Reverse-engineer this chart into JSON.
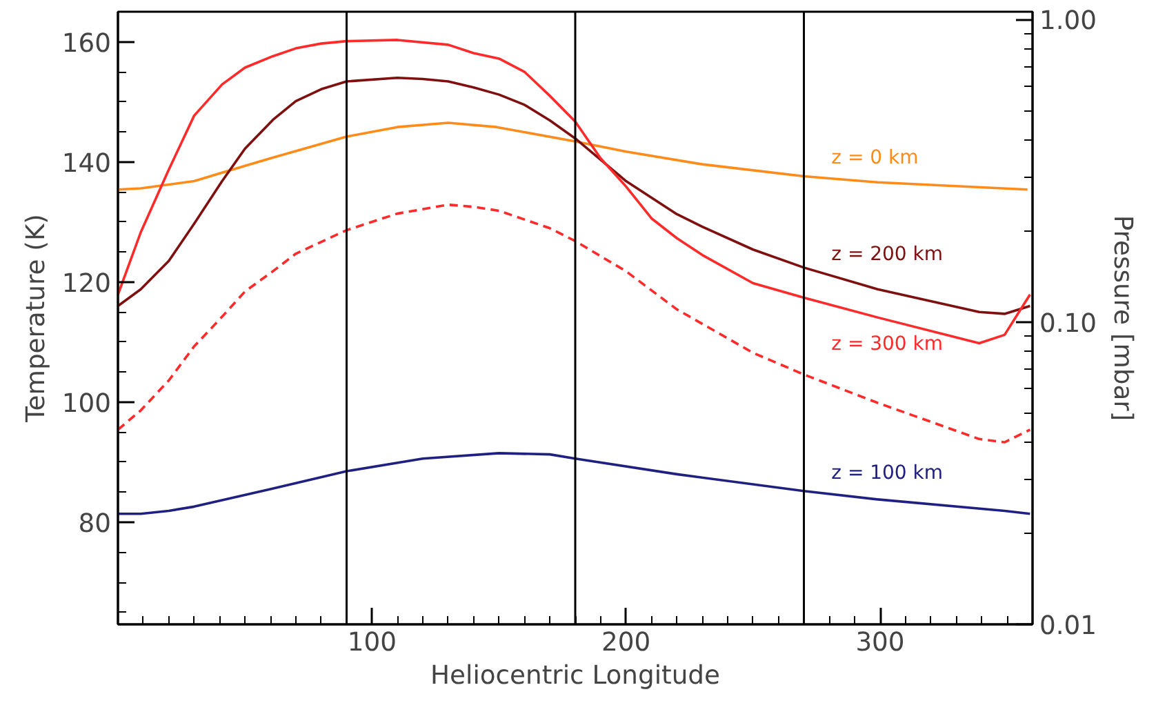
{
  "chart_data": {
    "type": "line",
    "xlabel": "Heliocentric Longitude",
    "ylabel": "Temperature (K)",
    "y2label": "Pressure [mbar]",
    "xlim": [
      0,
      360
    ],
    "xticks": [
      100,
      200,
      300
    ],
    "ylim": [
      63,
      165
    ],
    "yticks": [
      80,
      100,
      120,
      140,
      160
    ],
    "y2lim": [
      0.01,
      1.06
    ],
    "y2ticks": [
      {
        "value": 0.01,
        "label": "0.01"
      },
      {
        "value": 0.1,
        "label": "0.10"
      },
      {
        "value": 1,
        "label": "1.00"
      }
    ],
    "log": "y2",
    "grid": false,
    "legend": false,
    "marker": "none",
    "ref_lines": [
      {
        "axis": "x",
        "value": 90,
        "color": "#000000"
      },
      {
        "axis": "x",
        "value": 180,
        "color": "#000000"
      },
      {
        "axis": "x",
        "value": 270,
        "color": "#000000"
      }
    ],
    "series": [
      {
        "name": "z = 0 km",
        "color": "#ff8c1a",
        "line_style": "solid",
        "x": [
          0,
          9,
          30,
          41,
          60,
          90,
          110,
          130,
          149,
          180,
          200,
          230,
          270,
          299,
          358
        ],
        "values": [
          135.4,
          135.6,
          136.8,
          138.2,
          140.6,
          144.2,
          145.8,
          146.5,
          145.8,
          143.4,
          141.7,
          139.6,
          137.6,
          136.6,
          135.4
        ]
      },
      {
        "name": "z = 200 km",
        "color": "#7f1010",
        "line_style": "solid",
        "x": [
          0,
          9,
          20,
          30,
          41,
          50,
          61,
          70,
          80,
          90,
          110,
          120,
          130,
          140,
          150,
          160,
          170,
          180,
          200,
          220,
          230,
          250,
          270,
          299,
          339,
          349,
          359
        ],
        "values": [
          116.0,
          118.8,
          123.5,
          129.7,
          136.8,
          142.2,
          147.0,
          150.1,
          152.1,
          153.4,
          154.0,
          153.8,
          153.4,
          152.4,
          151.2,
          149.5,
          146.9,
          143.9,
          136.8,
          131.3,
          129.2,
          125.4,
          122.4,
          118.8,
          115.0,
          114.7,
          116.0
        ]
      },
      {
        "name": "z = 300 km",
        "color": "#ff2a2a",
        "line_style": "solid",
        "x": [
          0,
          9,
          20,
          30,
          41,
          50,
          61,
          70,
          80,
          90,
          110,
          130,
          140,
          150,
          160,
          170,
          180,
          190,
          200,
          210,
          220,
          230,
          250,
          270,
          299,
          339,
          349,
          359
        ],
        "values": [
          117.9,
          128.3,
          138.7,
          147.7,
          152.9,
          155.7,
          157.6,
          158.9,
          159.7,
          160.1,
          160.3,
          159.5,
          158.1,
          157.2,
          155.0,
          151.0,
          146.7,
          140.6,
          135.9,
          130.6,
          127.3,
          124.5,
          119.8,
          117.4,
          114.1,
          109.8,
          111.2,
          117.9
        ]
      },
      {
        "color": "#ff2a2a",
        "line_style": "dashed",
        "axis": "y2",
        "x": [
          0,
          9,
          20,
          30,
          41,
          50,
          61,
          70,
          90,
          110,
          130,
          140,
          150,
          170,
          180,
          200,
          220,
          250,
          270,
          299,
          339,
          349,
          359
        ],
        "values": [
          0.044,
          0.051,
          0.064,
          0.083,
          0.104,
          0.126,
          0.147,
          0.168,
          0.201,
          0.228,
          0.244,
          0.24,
          0.233,
          0.204,
          0.185,
          0.147,
          0.11,
          0.079,
          0.067,
          0.054,
          0.041,
          0.04,
          0.044
        ]
      },
      {
        "name": "z = 100 km",
        "color": "#1f2080",
        "line_style": "solid",
        "x": [
          0,
          9,
          20,
          30,
          60,
          90,
          120,
          150,
          170,
          180,
          220,
          270,
          299,
          349,
          359
        ],
        "values": [
          81.4,
          81.4,
          81.9,
          82.6,
          85.5,
          88.5,
          90.6,
          91.5,
          91.3,
          90.6,
          88.0,
          85.2,
          83.8,
          81.9,
          81.4
        ]
      }
    ]
  }
}
